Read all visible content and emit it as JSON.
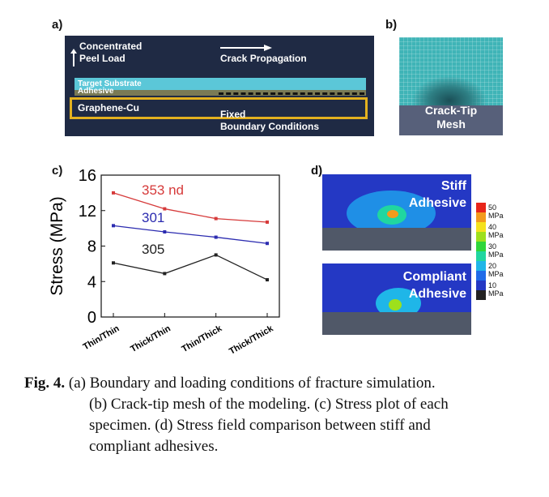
{
  "panel_a": {
    "label": "a)",
    "load_label_1": "Concentrated",
    "load_label_2": "Peel Load",
    "crack_label": "Crack Propagation",
    "target_label": "Target Substrate",
    "adhesive_label": "Adhesive",
    "cu_label": "Graphene-Cu",
    "fixed_label_1": "Fixed",
    "fixed_label_2": "Boundary Conditions"
  },
  "panel_b": {
    "label": "b)",
    "mesh_label_1": "Crack-Tip",
    "mesh_label_2": "Mesh"
  },
  "chart_data": {
    "type": "line",
    "panel_label": "c)",
    "categories": [
      "Thin/Thin",
      "Thick/Thin",
      "Thin/Thick",
      "Thick/Thick"
    ],
    "ylabel": "Stress (MPa)",
    "ylim": [
      0,
      16
    ],
    "yticks": [
      0,
      4,
      8,
      12,
      16
    ],
    "series": [
      {
        "name": "353 nd",
        "values": [
          14.0,
          12.2,
          11.1,
          10.7
        ],
        "color": "#d63a3a"
      },
      {
        "name": "301",
        "values": [
          10.3,
          9.6,
          9.0,
          8.3
        ],
        "color": "#2c2cb0"
      },
      {
        "name": "305",
        "values": [
          6.1,
          4.9,
          7.0,
          4.2
        ],
        "color": "#222222"
      }
    ]
  },
  "panel_d": {
    "label": "d)",
    "top_label_1": "Stiff",
    "top_label_2": "Adhesive",
    "bottom_label_1": "Compliant",
    "bottom_label_2": "Adhesive",
    "scale": [
      {
        "label": "50 MPa",
        "color": "#e8251a"
      },
      {
        "label": "",
        "color": "#f39a1c"
      },
      {
        "label": "40 MPa",
        "color": "#f5e21d"
      },
      {
        "label": "",
        "color": "#9ee01c"
      },
      {
        "label": "30 MPa",
        "color": "#2fd63a"
      },
      {
        "label": "",
        "color": "#21d6a0"
      },
      {
        "label": "20 MPa",
        "color": "#1fb6e8"
      },
      {
        "label": "",
        "color": "#1f6be8"
      },
      {
        "label": "10 MPa",
        "color": "#2438c4"
      },
      {
        "label": "",
        "color": "#222222"
      }
    ]
  },
  "caption": {
    "fig": "Fig. 4.",
    "line1": "(a) Boundary and loading conditions of fracture simulation.",
    "line2": "(b) Crack-tip mesh of the modeling. (c) Stress plot of each",
    "line3": "specimen. (d) Stress field comparison between stiff and",
    "line4": "compliant adhesives."
  }
}
